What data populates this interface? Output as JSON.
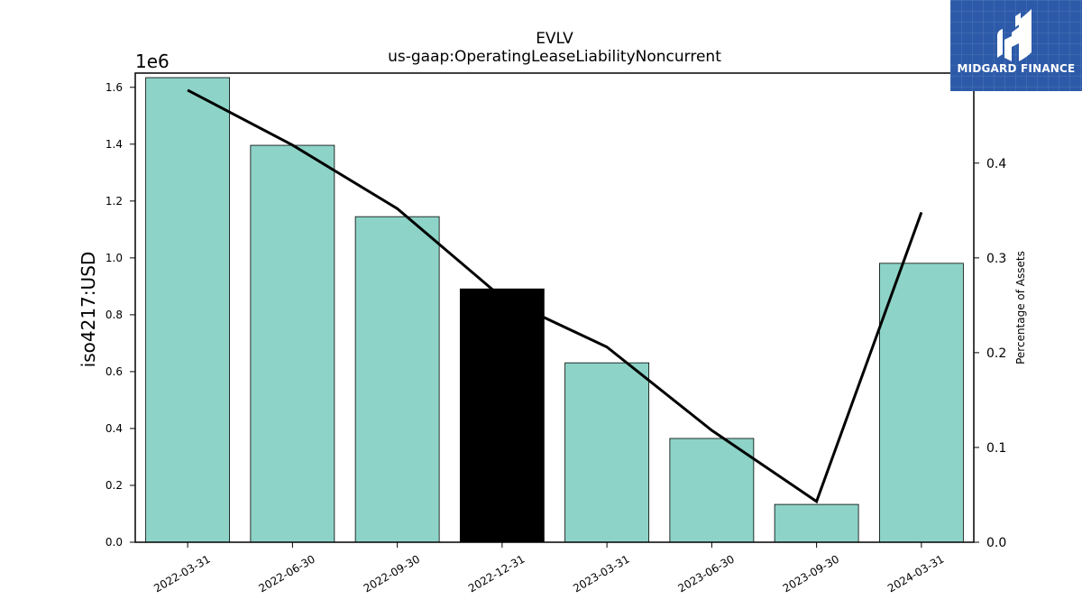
{
  "chart_data": {
    "type": "bar",
    "title": "EVLV",
    "subtitle": "us-gaap:OperatingLeaseLiabilityNoncurrent",
    "categories": [
      "2022-03-31",
      "2022-06-30",
      "2022-09-30",
      "2022-12-31",
      "2023-03-31",
      "2023-06-30",
      "2023-09-30",
      "2024-03-31"
    ],
    "series": [
      {
        "type": "bar",
        "axis": "left",
        "values": [
          1634000,
          1396000,
          1145000,
          891000,
          631000,
          365000,
          133000,
          981000
        ],
        "highlight_index": 3
      },
      {
        "type": "line",
        "axis": "right",
        "values": [
          0.477,
          0.419,
          0.352,
          0.258,
          0.206,
          0.118,
          0.043,
          0.348
        ]
      }
    ],
    "ylabel": "iso4217:USD",
    "y_offset_label": "1e6",
    "ylim": [
      0,
      1650000
    ],
    "yticks": [
      "0.0",
      "0.2",
      "0.4",
      "0.6",
      "0.8",
      "1.0",
      "1.2",
      "1.4",
      "1.6"
    ],
    "y2label": "Percentage of Assets",
    "y2lim": [
      0,
      0.495
    ],
    "y2ticks": [
      "0.0",
      "0.1",
      "0.2",
      "0.3",
      "0.4"
    ],
    "grid": false,
    "colors": {
      "bar": "#8dd3c7",
      "highlight": "#000000",
      "line": "#000000"
    }
  },
  "logo": {
    "text": "MIDGARD FINANCE",
    "background": "#2d5aa8"
  }
}
